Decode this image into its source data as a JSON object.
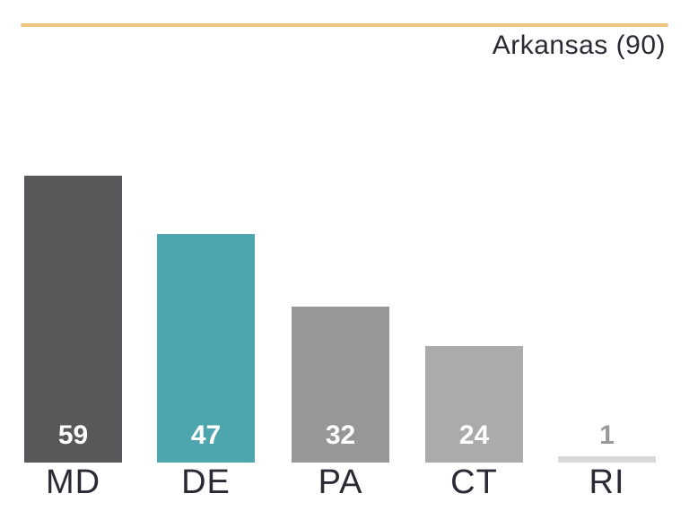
{
  "header": {
    "title": "Arkansas (90)",
    "accent_color": "#ecc57f",
    "title_color": "#2b2933"
  },
  "chart_data": {
    "type": "bar",
    "title": "Arkansas (90)",
    "categories": [
      "MD",
      "DE",
      "PA",
      "CT",
      "RI"
    ],
    "values": [
      59,
      47,
      32,
      24,
      1
    ],
    "value_labels": [
      "59",
      "47",
      "32",
      "24",
      "1"
    ],
    "xlabel": "",
    "ylabel": "",
    "ylim": [
      0,
      62
    ],
    "grid": false,
    "legend": "none",
    "bar_colors": [
      "#58575a",
      "#4da6ad",
      "#979797",
      "#ababab",
      "#d9d9d9"
    ],
    "value_label_colors": [
      "#ffffff",
      "#ffffff",
      "#ffffff",
      "#ffffff",
      "#9a9a9a"
    ],
    "category_label_color": "#2b2933"
  }
}
